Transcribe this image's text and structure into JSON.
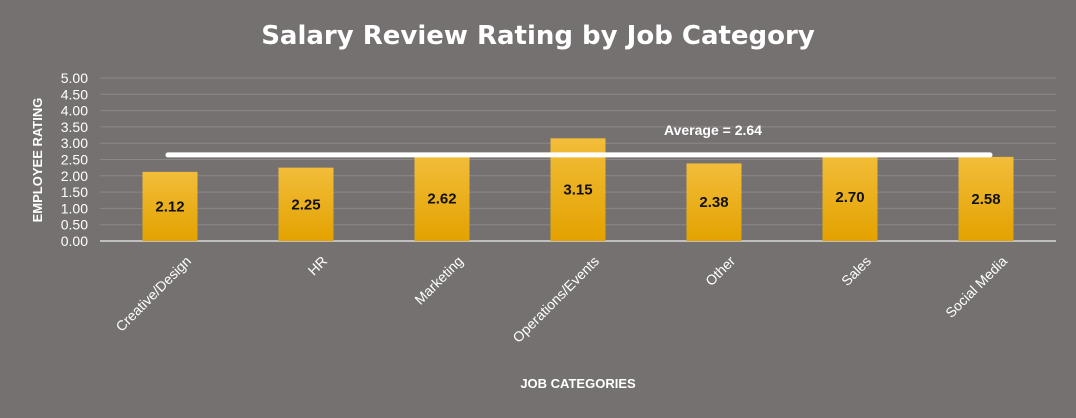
{
  "chart_data": {
    "type": "bar",
    "title": "Salary Review Rating by Job Category",
    "xlabel": "JOB CATEGORIES",
    "ylabel": "EMPLOYEE RATING",
    "categories": [
      "Creative/Design",
      "HR",
      "Marketing",
      "Operations/Events",
      "Other",
      "Sales",
      "Social Media"
    ],
    "values": [
      2.12,
      2.25,
      2.62,
      3.15,
      2.38,
      2.7,
      2.58
    ],
    "data_labels": [
      "2.12",
      "2.25",
      "2.62",
      "3.15",
      "2.38",
      "2.70",
      "2.58"
    ],
    "ylim": [
      0,
      5
    ],
    "yticks": [
      "0.00",
      "0.50",
      "1.00",
      "1.50",
      "2.00",
      "2.50",
      "3.00",
      "3.50",
      "4.00",
      "4.50",
      "5.00"
    ],
    "average": 2.64,
    "average_label": "Average = 2.64",
    "grid": true,
    "legend": "none",
    "colors": {
      "background": "#767171",
      "bar_top": "#f2bd3a",
      "bar_bottom": "#e3a200",
      "gridline": "#8c8888",
      "average_line": "#ffffff"
    }
  }
}
